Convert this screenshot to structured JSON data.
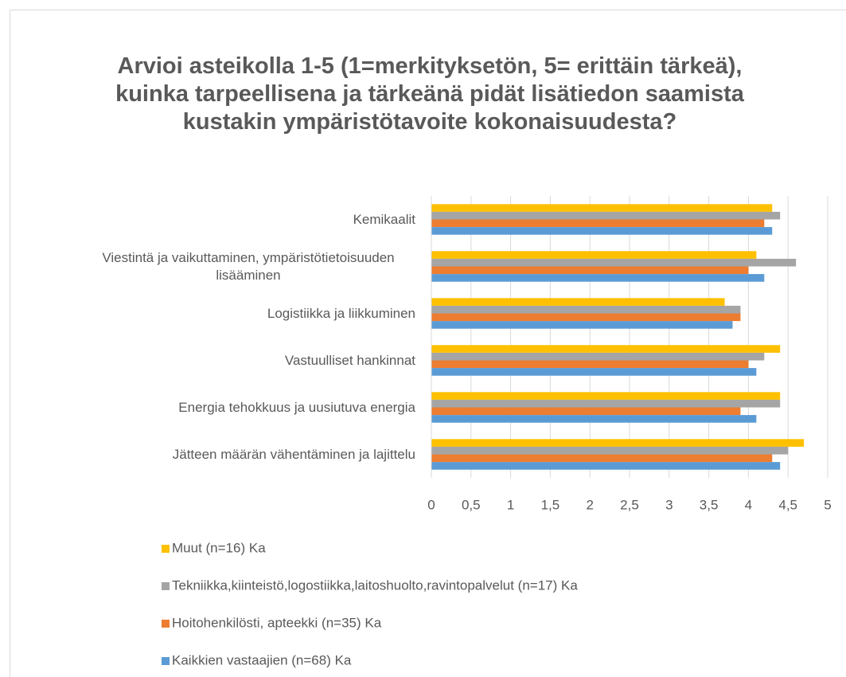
{
  "chart_data": {
    "type": "bar",
    "orientation": "horizontal",
    "title": "Arvioi asteikolla 1-5 (1=merkityksetön, 5= erittäin tärkeä), kuinka tarpeellisena ja tärkeänä pidät lisätiedon saamista kustakin ympäristötavoite kokonaisuudesta?",
    "categories": [
      "Kemikaalit",
      "Viestintä ja vaikuttaminen, ympäristötietoisuuden lisääminen",
      "Logistiikka ja liikkuminen",
      "Vastuulliset hankinnat",
      "Energia tehokkuus ja uusiutuva energia",
      "Jätteen määrän vähentäminen ja lajittelu"
    ],
    "series": [
      {
        "name": "Muut (n=16) Ka",
        "color": "#ffc000",
        "values": [
          4.3,
          4.1,
          3.7,
          4.4,
          4.4,
          4.7
        ]
      },
      {
        "name": "Tekniikka,kiinteistö,logostiikka,laitoshuolto,ravintopalvelut (n=17) Ka",
        "color": "#a5a5a5",
        "values": [
          4.4,
          4.6,
          3.9,
          4.2,
          4.4,
          4.5
        ]
      },
      {
        "name": "Hoitohenkilösti, apteekki (n=35) Ka",
        "color": "#ed7d31",
        "values": [
          4.2,
          4.0,
          3.9,
          4.0,
          3.9,
          4.3
        ]
      },
      {
        "name": "Kaikkien vastaajien (n=68) Ka",
        "color": "#5b9bd5",
        "values": [
          4.3,
          4.2,
          3.8,
          4.1,
          4.1,
          4.4
        ]
      }
    ],
    "xlim": [
      0,
      5
    ],
    "xticks": [
      0,
      {
        "value": 0.5,
        "label": "0,5"
      },
      1,
      {
        "value": 1.5,
        "label": "1,5"
      },
      2,
      {
        "value": 2.5,
        "label": "2,5"
      },
      3,
      {
        "value": 3.5,
        "label": "3,5"
      },
      4,
      {
        "value": 4.5,
        "label": "4,5"
      },
      5
    ],
    "grid": true,
    "legend": "bottom"
  }
}
